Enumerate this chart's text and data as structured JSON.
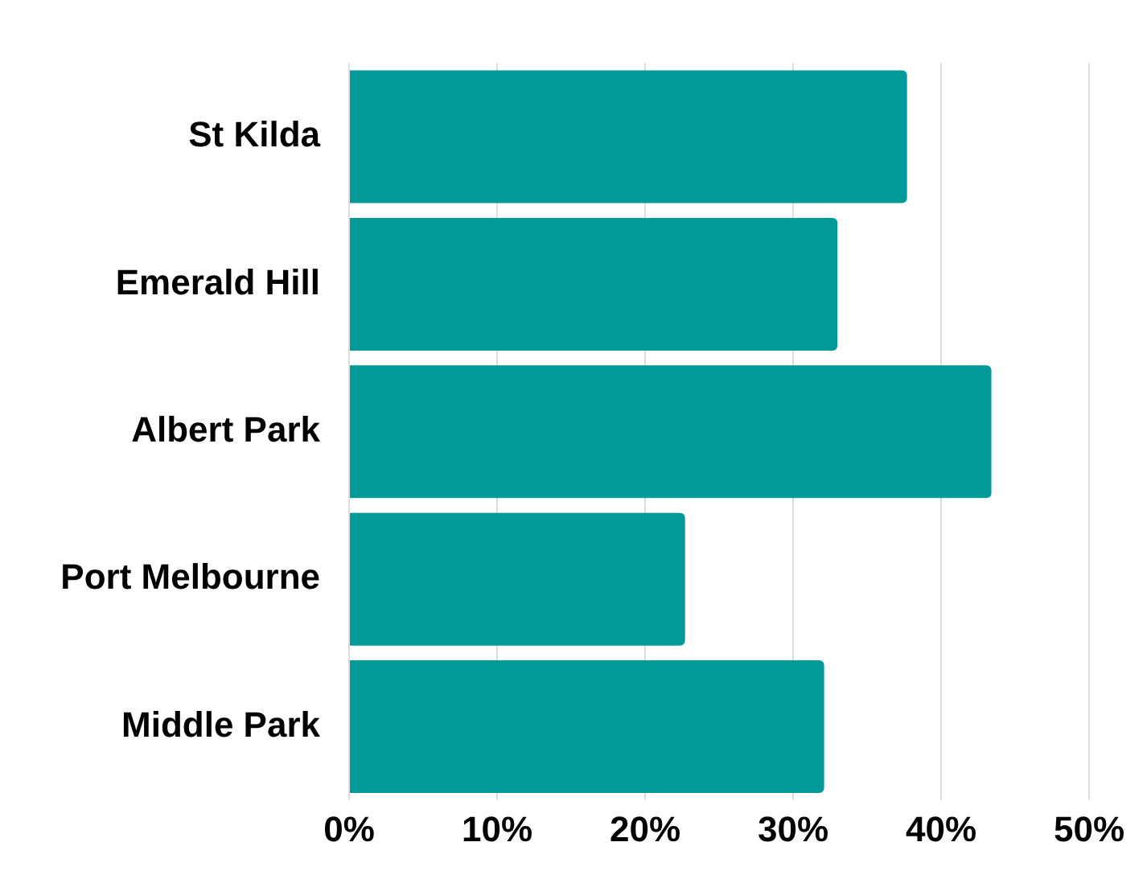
{
  "chart_data": {
    "type": "bar",
    "orientation": "horizontal",
    "categories": [
      "St Kilda",
      "Emerald Hill",
      "Albert Park",
      "Port Melbourne",
      "Middle Park"
    ],
    "values": [
      37.7,
      33,
      43.4,
      22.7,
      32.1
    ],
    "color": "#029999",
    "xlim": [
      0,
      50
    ],
    "xticks": [
      {
        "value": 0,
        "label": "0%"
      },
      {
        "value": 10,
        "label": "10%"
      },
      {
        "value": 20,
        "label": "20%"
      },
      {
        "value": 30,
        "label": "30%"
      },
      {
        "value": 40,
        "label": "40%"
      },
      {
        "value": 50,
        "label": "50%"
      }
    ],
    "grid": "x",
    "legend": false
  }
}
